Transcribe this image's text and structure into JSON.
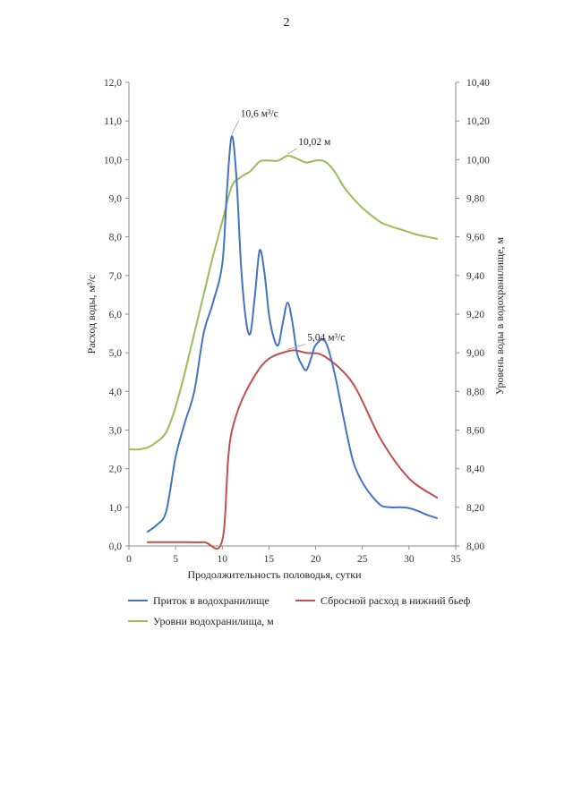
{
  "page_number": "2",
  "chart_data": {
    "type": "line",
    "xlabel": "Продолжительность половодья, сутки",
    "ylabel_left": "Расход воды, м³/с",
    "ylabel_right": "Уровень воды в водохранилище, м",
    "xlim": [
      0,
      35
    ],
    "ylim_left": [
      0,
      12
    ],
    "ylim_right": [
      8.0,
      10.4
    ],
    "x_ticks": [
      "0",
      "5",
      "10",
      "15",
      "20",
      "25",
      "30",
      "35"
    ],
    "y_left_ticks": [
      "0,0",
      "1,0",
      "2,0",
      "3,0",
      "4,0",
      "5,0",
      "6,0",
      "7,0",
      "8,0",
      "9,0",
      "10,0",
      "11,0",
      "12,0"
    ],
    "y_right_ticks": [
      "8,00",
      "8,20",
      "8,40",
      "8,60",
      "8,80",
      "9,00",
      "9,20",
      "9,40",
      "9,60",
      "9,80",
      "10,00",
      "10,20",
      "10,40"
    ],
    "grid": false,
    "legend_position": "bottom",
    "series": [
      {
        "name": "Приток в водохранилище",
        "axis": "left",
        "color": "#4472c4",
        "x": [
          2,
          3,
          4,
          5,
          6,
          7,
          8,
          9,
          10,
          10.5,
          11,
          11.5,
          12,
          12.5,
          13,
          13.5,
          14,
          14.5,
          15,
          15.5,
          16,
          16.5,
          17,
          17.5,
          18,
          18.5,
          19,
          19.5,
          20,
          21,
          22,
          23,
          24,
          25,
          26,
          27,
          28,
          29,
          30,
          31,
          32,
          33
        ],
        "y": [
          0.37,
          0.55,
          0.9,
          2.3,
          3.2,
          4.0,
          5.5,
          6.3,
          7.3,
          9.2,
          10.6,
          9.6,
          7.3,
          5.9,
          5.5,
          6.5,
          7.65,
          7.1,
          6.0,
          5.4,
          5.2,
          5.8,
          6.3,
          5.8,
          5.0,
          4.7,
          4.55,
          4.85,
          5.2,
          5.3,
          4.5,
          3.3,
          2.2,
          1.65,
          1.3,
          1.05,
          1.0,
          1.0,
          0.98,
          0.9,
          0.8,
          0.72
        ]
      },
      {
        "name": "Сбросной расход в нижний бьеф",
        "axis": "left",
        "color": "#c0504d",
        "x": [
          2,
          5,
          8,
          10,
          11,
          14,
          17,
          19,
          21,
          24,
          27,
          30,
          33
        ],
        "y": [
          0.1,
          0.1,
          0.1,
          0.15,
          2.95,
          4.6,
          5.04,
          5.0,
          4.9,
          4.2,
          2.75,
          1.75,
          1.25
        ]
      },
      {
        "name": "Уровни водохранилища, м",
        "axis": "right",
        "color": "#9bbb59",
        "x": [
          0,
          1,
          2,
          3,
          4,
          5,
          6,
          7,
          8,
          9,
          10,
          11,
          12,
          13,
          14,
          15,
          16,
          17,
          18,
          19,
          20,
          21,
          22,
          23,
          24,
          25,
          26,
          27,
          28,
          29,
          30,
          31,
          32,
          33
        ],
        "y": [
          8.5,
          8.5,
          8.51,
          8.54,
          8.59,
          8.72,
          8.9,
          9.1,
          9.3,
          9.5,
          9.68,
          9.86,
          9.91,
          9.94,
          9.99,
          9.995,
          9.995,
          10.02,
          10.005,
          9.985,
          9.995,
          9.99,
          9.94,
          9.86,
          9.8,
          9.75,
          9.71,
          9.675,
          9.655,
          9.64,
          9.625,
          9.61,
          9.6,
          9.59
        ]
      }
    ],
    "annotations": [
      {
        "text": "10,6 м³/с",
        "series": 0,
        "x": 11,
        "y": 10.6
      },
      {
        "text": "10,02 м",
        "series": 2,
        "x": 17,
        "y": 10.02
      },
      {
        "text": "5,04 м³/с",
        "series": 1,
        "x": 17,
        "y": 5.04
      }
    ]
  }
}
